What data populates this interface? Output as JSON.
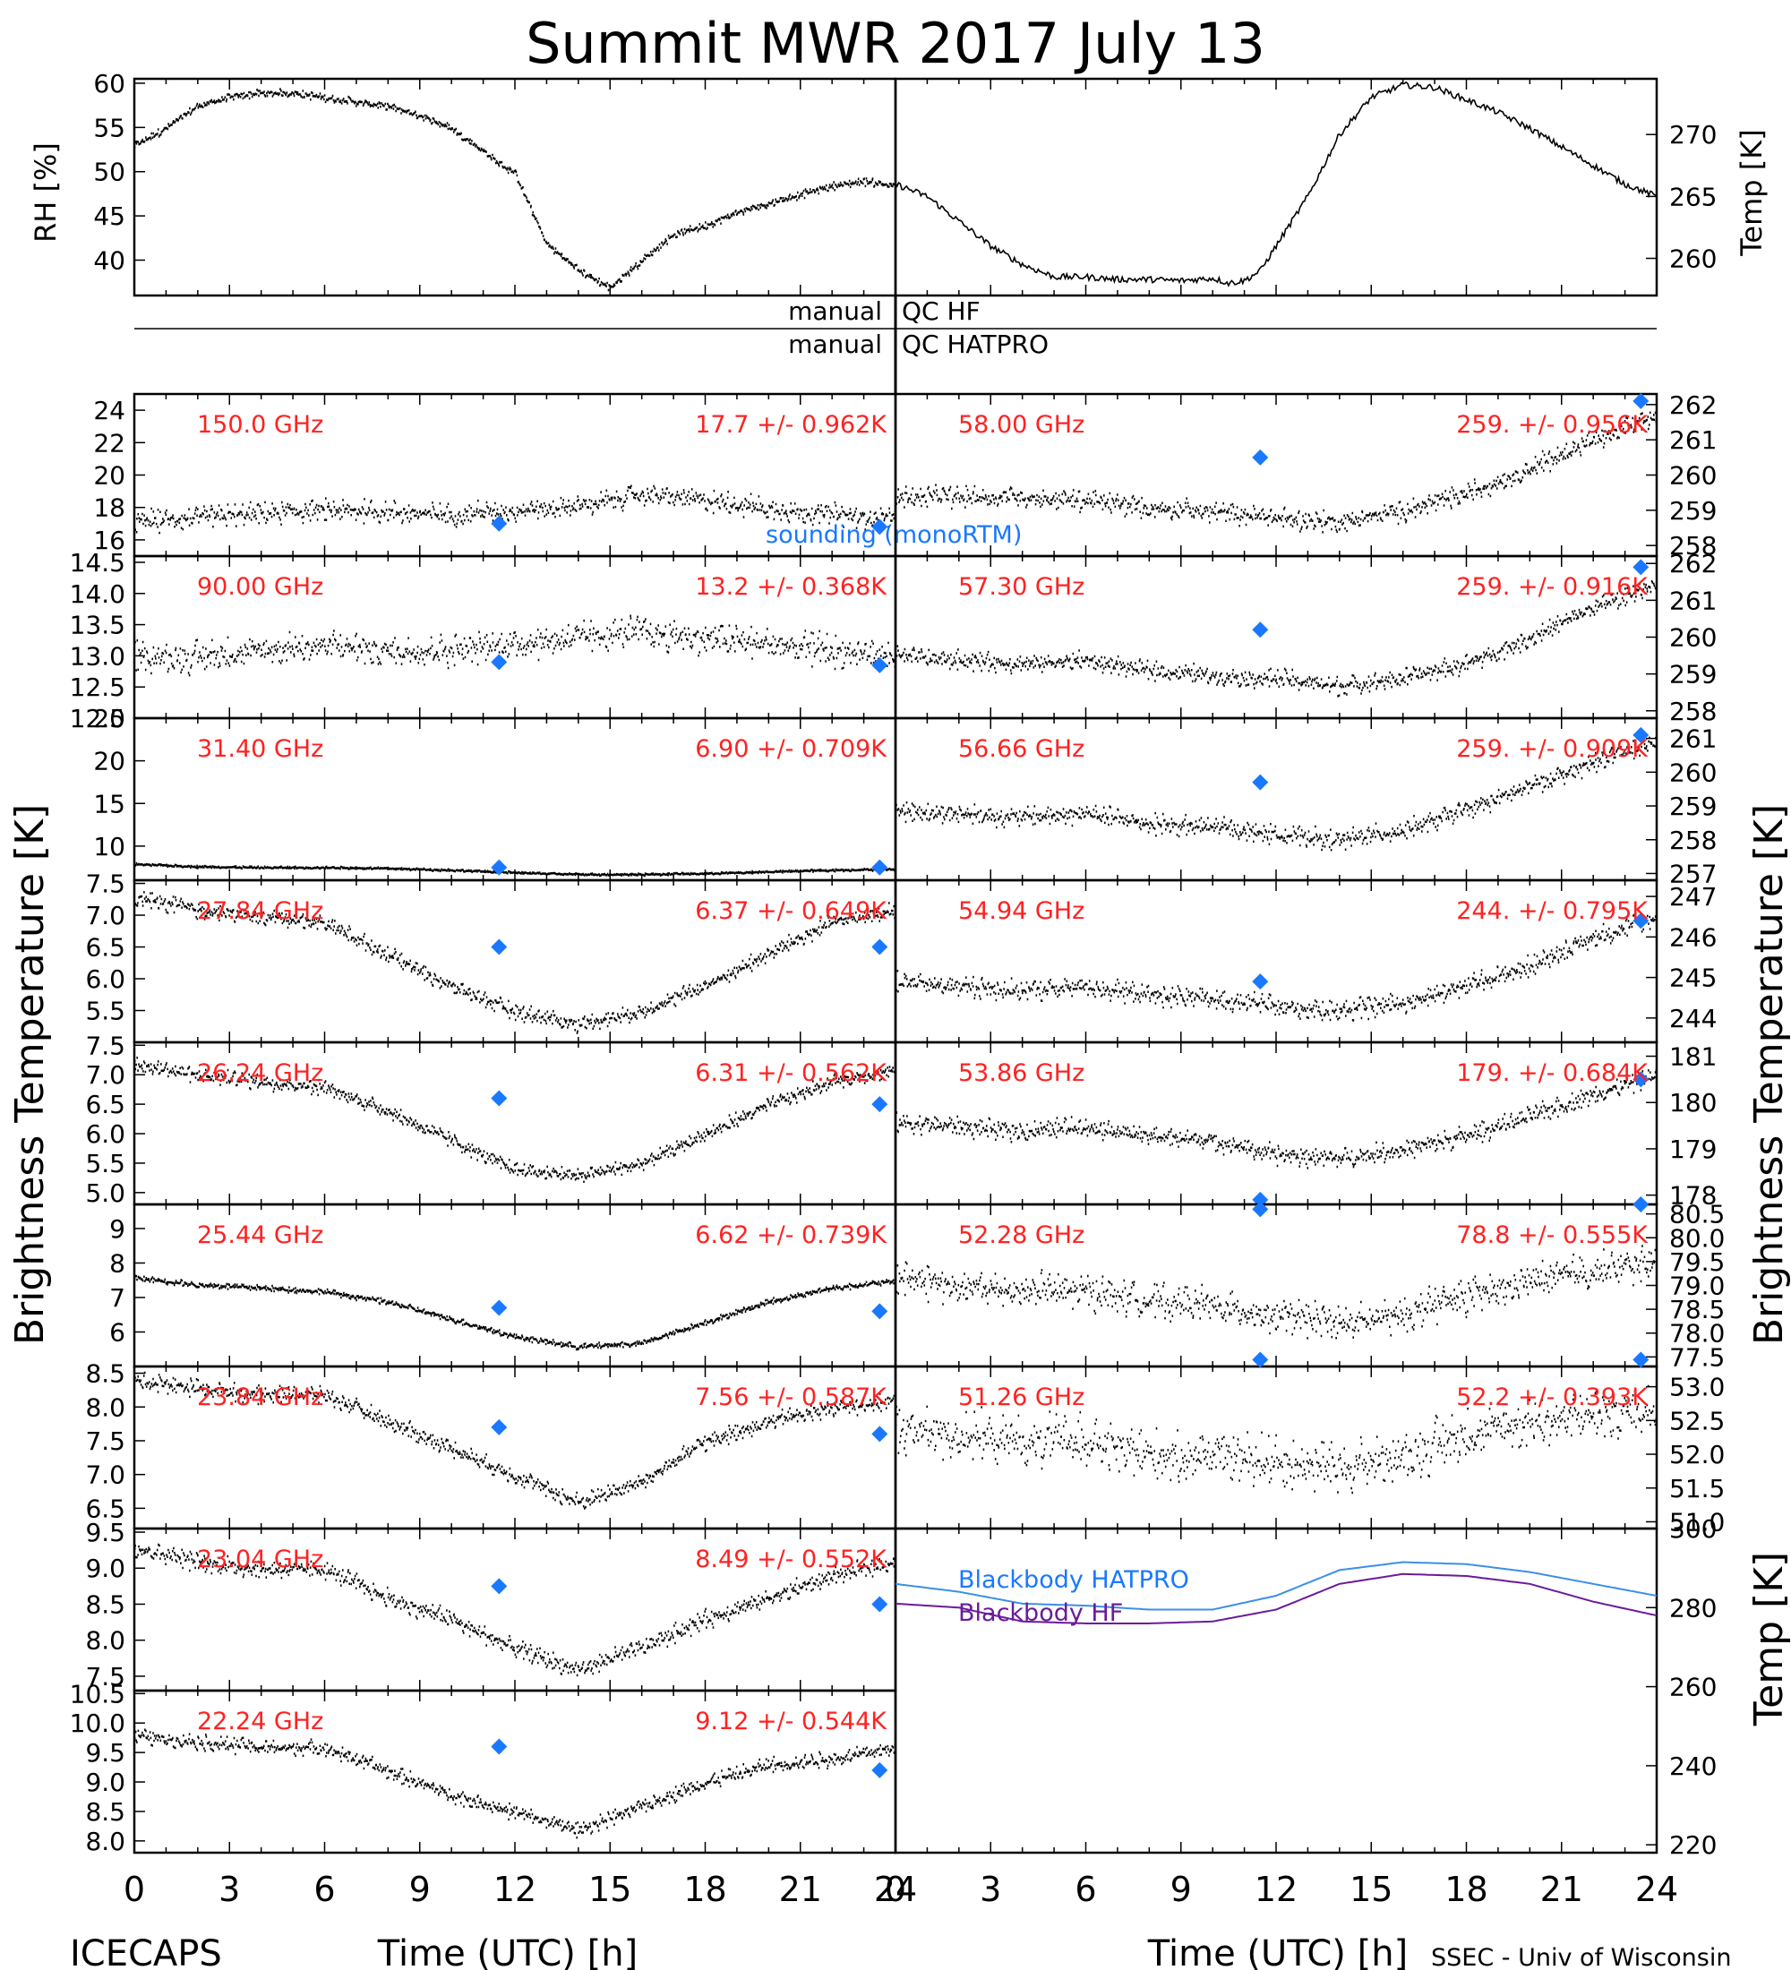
{
  "title": "Summit MWR 2017 July 13",
  "footer_left": "ICECAPS",
  "footer_right": "SSEC - Univ of Wisconsin",
  "qc_rows": [
    {
      "left": "manual",
      "right": "QC HF"
    },
    {
      "left": "manual",
      "right": "QC HATPRO"
    }
  ],
  "colors": {
    "series": "#000000",
    "channel_text": "#ff2222",
    "sounding": "#1a78ff",
    "bb_hatpro": "#3b8fe8",
    "bb_hf": "#6a1b9a"
  },
  "axis_labels": {
    "rh": "RH [%]",
    "temp_top": "Temp [K]",
    "bt_left": "Brightness Temperature [K]",
    "bt_right": "Brightness Temperature [K]",
    "temp_bb": "Temp [K]",
    "time": "Time (UTC) [h]"
  },
  "time_ticks": [
    "0",
    "3",
    "6",
    "9",
    "12",
    "15",
    "18",
    "21",
    "24"
  ],
  "chart_data": [
    {
      "id": "rh",
      "type": "scatter",
      "title": "",
      "ylabel": "RH [%]",
      "xlim": [
        0,
        24
      ],
      "ylim": [
        36,
        60.5
      ],
      "yticks": [
        "40",
        "45",
        "50",
        "55",
        "60"
      ],
      "x": [
        0,
        1,
        2,
        3,
        4,
        5,
        6,
        7,
        8,
        9,
        10,
        11,
        11.5,
        12,
        13,
        14,
        14.5,
        15,
        16,
        17,
        18,
        19,
        20,
        21,
        22,
        23,
        24
      ],
      "values": [
        53,
        55,
        57.5,
        58.5,
        59,
        59,
        58.5,
        58,
        57.5,
        56.5,
        55,
        52.5,
        51,
        50,
        42,
        39,
        38,
        37,
        40,
        43,
        44,
        45.5,
        46.5,
        47.5,
        48.5,
        49,
        48.5
      ]
    },
    {
      "id": "temp",
      "type": "line",
      "title": "",
      "ylabel": "Temp [K]",
      "xlim": [
        0,
        24
      ],
      "ylim": [
        257,
        274.5
      ],
      "yticks": [
        "260",
        "265",
        "270"
      ],
      "x": [
        0,
        1,
        2,
        3,
        4,
        5,
        6,
        7,
        8,
        9,
        10,
        10.5,
        11,
        11.5,
        12,
        13,
        14,
        15,
        16,
        17,
        18,
        19,
        20,
        21,
        22,
        23,
        24
      ],
      "values": [
        266,
        265,
        263,
        261,
        259.5,
        258.5,
        258.5,
        258.3,
        258.3,
        258.2,
        258.4,
        258,
        258.2,
        259,
        261,
        265,
        270,
        273,
        274,
        273.8,
        272.8,
        271.8,
        270.5,
        269,
        267.5,
        266,
        265
      ]
    },
    {
      "id": "ch150",
      "type": "scatter",
      "channel": "150.0 GHz",
      "stats": "17.7 +/- 0.962K",
      "sounding_label": "sounding (monoRTM)",
      "ylim": [
        15,
        25
      ],
      "yticks": [
        "16",
        "18",
        "20",
        "22",
        "24"
      ],
      "x": [
        0,
        2,
        4,
        6,
        8,
        10,
        12,
        14,
        16,
        18,
        20,
        22,
        24
      ],
      "values": [
        17.2,
        17.4,
        17.7,
        17.9,
        17.8,
        17.6,
        17.9,
        18.1,
        18.9,
        18.5,
        18.0,
        17.6,
        17.4
      ],
      "noise": 0.8,
      "sounding": [
        {
          "x": 11.5,
          "y": 17.0
        },
        {
          "x": 23.5,
          "y": 16.8
        }
      ]
    },
    {
      "id": "ch58",
      "type": "scatter",
      "channel": "58.00 GHz",
      "stats": "259. +/- 0.956K",
      "ylim": [
        257.7,
        262.3
      ],
      "yticks": [
        "258",
        "259",
        "260",
        "261",
        "262"
      ],
      "x": [
        0,
        2,
        4,
        6,
        8,
        10,
        12,
        14,
        16,
        18,
        20,
        22,
        24
      ],
      "values": [
        259.4,
        259.4,
        259.4,
        259.3,
        259.1,
        259.0,
        258.8,
        258.7,
        259.0,
        259.5,
        260.2,
        261.0,
        261.7
      ],
      "noise": 0.35,
      "sounding": [
        {
          "x": 11.5,
          "y": 260.5
        },
        {
          "x": 23.5,
          "y": 262.1
        }
      ]
    },
    {
      "id": "ch90",
      "type": "scatter",
      "channel": "90.00 GHz",
      "stats": "13.2 +/- 0.368K",
      "ylim": [
        12,
        14.6
      ],
      "yticks": [
        "12.0",
        "12.5",
        "13.0",
        "13.5",
        "14.0",
        "14.5"
      ],
      "x": [
        0,
        2,
        4,
        6,
        8,
        10,
        12,
        14,
        16,
        18,
        20,
        22,
        24
      ],
      "values": [
        13.0,
        13.0,
        13.1,
        13.2,
        13.1,
        13.1,
        13.2,
        13.3,
        13.4,
        13.3,
        13.2,
        13.1,
        13.0
      ],
      "noise": 0.3,
      "sounding": [
        {
          "x": 11.5,
          "y": 12.9
        },
        {
          "x": 23.5,
          "y": 12.85
        }
      ]
    },
    {
      "id": "ch57",
      "type": "scatter",
      "channel": "57.30 GHz",
      "stats": "259. +/- 0.916K",
      "ylim": [
        257.8,
        262.2
      ],
      "yticks": [
        "258",
        "259",
        "260",
        "261",
        "262"
      ],
      "x": [
        0,
        2,
        4,
        6,
        8,
        10,
        12,
        14,
        16,
        18,
        20,
        22,
        24
      ],
      "values": [
        259.5,
        259.4,
        259.3,
        259.4,
        259.1,
        259.0,
        258.9,
        258.7,
        258.9,
        259.3,
        260.0,
        260.8,
        261.5
      ],
      "noise": 0.3,
      "sounding": [
        {
          "x": 11.5,
          "y": 260.2
        },
        {
          "x": 23.5,
          "y": 261.9
        }
      ]
    },
    {
      "id": "ch31",
      "type": "scatter",
      "channel": "31.40 GHz",
      "stats": "6.90 +/- 0.709K",
      "ylim": [
        6,
        25
      ],
      "yticks": [
        "10",
        "15",
        "20",
        "25"
      ],
      "x": [
        0,
        2,
        4,
        6,
        8,
        10,
        12,
        14,
        16,
        18,
        20,
        22,
        24
      ],
      "values": [
        8.0,
        7.7,
        7.6,
        7.6,
        7.5,
        7.3,
        7.0,
        6.8,
        6.8,
        6.9,
        7.1,
        7.3,
        7.4
      ],
      "noise": 0.15,
      "sounding": [
        {
          "x": 11.5,
          "y": 7.5
        },
        {
          "x": 23.5,
          "y": 7.5
        }
      ]
    },
    {
      "id": "ch56",
      "type": "scatter",
      "channel": "56.66 GHz",
      "stats": "259. +/- 0.909K",
      "ylim": [
        256.8,
        261.6
      ],
      "yticks": [
        "257",
        "258",
        "259",
        "260",
        "261"
      ],
      "x": [
        0,
        2,
        4,
        6,
        8,
        10,
        12,
        14,
        16,
        18,
        20,
        22,
        24
      ],
      "values": [
        258.9,
        258.8,
        258.7,
        258.8,
        258.5,
        258.4,
        258.2,
        258.0,
        258.3,
        258.9,
        259.6,
        260.3,
        260.9
      ],
      "noise": 0.35,
      "sounding": [
        {
          "x": 11.5,
          "y": 259.7
        },
        {
          "x": 23.5,
          "y": 261.1
        }
      ]
    },
    {
      "id": "ch27",
      "type": "scatter",
      "channel": "27.84 GHz",
      "stats": "6.37 +/- 0.649K",
      "ylim": [
        5.0,
        7.55
      ],
      "yticks": [
        "5.5",
        "6.0",
        "6.5",
        "7.0",
        "7.5"
      ],
      "x": [
        0,
        2,
        4,
        6,
        8,
        10,
        12,
        14,
        16,
        18,
        20,
        22,
        24
      ],
      "values": [
        7.3,
        7.1,
        7.0,
        6.9,
        6.4,
        5.9,
        5.5,
        5.3,
        5.5,
        5.9,
        6.4,
        6.9,
        7.1
      ],
      "noise": 0.15,
      "sounding": [
        {
          "x": 11.5,
          "y": 6.5
        },
        {
          "x": 23.5,
          "y": 6.5
        }
      ]
    },
    {
      "id": "ch54",
      "type": "scatter",
      "channel": "54.94 GHz",
      "stats": "244. +/- 0.795K",
      "ylim": [
        243.4,
        247.4
      ],
      "yticks": [
        "244",
        "245",
        "246",
        "247"
      ],
      "x": [
        0,
        2,
        4,
        6,
        8,
        10,
        12,
        14,
        16,
        18,
        20,
        22,
        24
      ],
      "values": [
        244.9,
        244.8,
        244.7,
        244.8,
        244.6,
        244.5,
        244.3,
        244.2,
        244.4,
        244.8,
        245.3,
        246.0,
        246.5
      ],
      "noise": 0.3,
      "sounding": [
        {
          "x": 11.5,
          "y": 244.9
        },
        {
          "x": 23.5,
          "y": 246.4
        }
      ]
    },
    {
      "id": "ch26",
      "type": "scatter",
      "channel": "26.24 GHz",
      "stats": "6.31 +/- 0.562K",
      "ylim": [
        4.8,
        7.55
      ],
      "yticks": [
        "5.0",
        "5.5",
        "6.0",
        "6.5",
        "7.0",
        "7.5"
      ],
      "x": [
        0,
        2,
        4,
        6,
        8,
        10,
        12,
        14,
        16,
        18,
        20,
        22,
        24
      ],
      "values": [
        7.2,
        7.0,
        6.9,
        6.8,
        6.4,
        5.9,
        5.4,
        5.3,
        5.5,
        6.0,
        6.5,
        6.9,
        7.1
      ],
      "noise": 0.15,
      "sounding": [
        {
          "x": 11.5,
          "y": 6.6
        },
        {
          "x": 23.5,
          "y": 6.5
        }
      ]
    },
    {
      "id": "ch53",
      "type": "scatter",
      "channel": "53.86 GHz",
      "stats": "179. +/- 0.684K",
      "ylim": [
        177.8,
        181.3
      ],
      "yticks": [
        "178",
        "179",
        "180",
        "181"
      ],
      "x": [
        0,
        2,
        4,
        6,
        8,
        10,
        12,
        14,
        16,
        18,
        20,
        22,
        24
      ],
      "values": [
        179.6,
        179.5,
        179.4,
        179.5,
        179.3,
        179.2,
        178.9,
        178.8,
        179.0,
        179.3,
        179.7,
        180.2,
        180.6
      ],
      "noise": 0.25,
      "sounding": [
        {
          "x": 11.5,
          "y": 177.9
        },
        {
          "x": 23.5,
          "y": 180.5
        }
      ]
    },
    {
      "id": "ch25",
      "type": "scatter",
      "channel": "25.44 GHz",
      "stats": "6.62 +/- 0.739K",
      "ylim": [
        5,
        9.7
      ],
      "yticks": [
        "6",
        "7",
        "8",
        "9"
      ],
      "x": [
        0,
        2,
        4,
        6,
        8,
        10,
        12,
        14,
        16,
        18,
        20,
        22,
        24
      ],
      "values": [
        7.6,
        7.4,
        7.3,
        7.2,
        6.9,
        6.4,
        5.9,
        5.6,
        5.7,
        6.3,
        6.9,
        7.3,
        7.5
      ],
      "noise": 0.1,
      "sounding": [
        {
          "x": 11.5,
          "y": 6.7
        },
        {
          "x": 23.5,
          "y": 6.6
        }
      ]
    },
    {
      "id": "ch52",
      "type": "scatter",
      "channel": "52.28 GHz",
      "stats": "78.8 +/- 0.555K",
      "ylim": [
        77.3,
        80.7
      ],
      "yticks": [
        "77.5",
        "78.0",
        "78.5",
        "79.0",
        "79.5",
        "80.0",
        "80.5"
      ],
      "x": [
        0,
        2,
        4,
        6,
        8,
        10,
        12,
        14,
        16,
        18,
        20,
        22,
        24
      ],
      "values": [
        79.2,
        79.0,
        78.9,
        78.9,
        78.7,
        78.6,
        78.4,
        78.2,
        78.4,
        78.8,
        79.1,
        79.3,
        79.5
      ],
      "noise": 0.45,
      "sounding": [
        {
          "x": 11.5,
          "y": 80.6
        },
        {
          "x": 23.5,
          "y": 80.7
        }
      ]
    },
    {
      "id": "ch23_84",
      "type": "scatter",
      "channel": "23.84 GHz",
      "stats": "7.56 +/- 0.587K",
      "ylim": [
        6.2,
        8.6
      ],
      "yticks": [
        "6.5",
        "7.0",
        "7.5",
        "8.0",
        "8.5"
      ],
      "x": [
        0,
        2,
        4,
        6,
        8,
        10,
        12,
        14,
        16,
        18,
        20,
        22,
        24
      ],
      "values": [
        8.4,
        8.3,
        8.2,
        8.2,
        7.8,
        7.4,
        7.0,
        6.6,
        6.9,
        7.5,
        7.8,
        8.0,
        8.1
      ],
      "noise": 0.15,
      "sounding": [
        {
          "x": 11.5,
          "y": 7.7
        },
        {
          "x": 23.5,
          "y": 7.6
        }
      ]
    },
    {
      "id": "ch51",
      "type": "scatter",
      "channel": "51.26 GHz",
      "stats": "52.2 +/- 0.393K",
      "ylim": [
        50.9,
        53.3
      ],
      "yticks": [
        "51.0",
        "51.5",
        "52.0",
        "52.5",
        "53.0"
      ],
      "x": [
        0,
        2,
        4,
        6,
        8,
        10,
        12,
        14,
        16,
        18,
        20,
        22,
        24
      ],
      "values": [
        52.4,
        52.3,
        52.2,
        52.2,
        52.0,
        52.0,
        51.9,
        51.8,
        52.0,
        52.3,
        52.5,
        52.6,
        52.7
      ],
      "noise": 0.45,
      "sounding": [
        {
          "x": 11.5,
          "y": 53.4
        },
        {
          "x": 23.5,
          "y": 53.4
        }
      ]
    },
    {
      "id": "ch23_04",
      "type": "scatter",
      "channel": "23.04 GHz",
      "stats": "8.49 +/- 0.552K",
      "ylim": [
        7.3,
        9.55
      ],
      "yticks": [
        "7.5",
        "8.0",
        "8.5",
        "9.0",
        "9.5"
      ],
      "x": [
        0,
        2,
        4,
        6,
        8,
        10,
        12,
        14,
        16,
        18,
        20,
        22,
        24
      ],
      "values": [
        9.3,
        9.1,
        9.0,
        9.0,
        8.6,
        8.3,
        7.9,
        7.6,
        7.9,
        8.3,
        8.6,
        8.9,
        9.1
      ],
      "noise": 0.15,
      "sounding": [
        {
          "x": 11.5,
          "y": 8.75
        },
        {
          "x": 23.5,
          "y": 8.5
        }
      ]
    },
    {
      "id": "bb",
      "type": "line",
      "ylabel": "Temp [K]",
      "ylim": [
        218,
        300
      ],
      "yticks": [
        "220",
        "240",
        "260",
        "280",
        "300"
      ],
      "x": [
        0,
        2,
        4,
        6,
        8,
        10,
        12,
        14,
        16,
        18,
        20,
        22,
        24
      ],
      "series": [
        {
          "name": "Blackbody HATPRO",
          "values": [
            286,
            284,
            281,
            280.5,
            279.5,
            279.5,
            283,
            289.5,
            291.5,
            291,
            289,
            286,
            283
          ]
        },
        {
          "name": "Blackbody HF",
          "values": [
            281,
            280,
            276.5,
            276,
            276,
            276.5,
            279.5,
            286,
            288.5,
            288,
            286,
            281.5,
            278
          ]
        }
      ]
    },
    {
      "id": "ch22",
      "type": "scatter",
      "channel": "22.24 GHz",
      "stats": "9.12 +/- 0.544K",
      "ylim": [
        7.8,
        10.55
      ],
      "yticks": [
        "8.0",
        "8.5",
        "9.0",
        "9.5",
        "10.0",
        "10.5"
      ],
      "x": [
        0,
        2,
        4,
        6,
        8,
        10,
        12,
        14,
        16,
        18,
        20,
        22,
        24
      ],
      "values": [
        9.8,
        9.7,
        9.6,
        9.6,
        9.2,
        8.8,
        8.5,
        8.2,
        8.6,
        9.0,
        9.3,
        9.4,
        9.6
      ],
      "noise": 0.15,
      "sounding": [
        {
          "x": 11.5,
          "y": 9.6
        },
        {
          "x": 23.5,
          "y": 9.2
        }
      ]
    }
  ]
}
